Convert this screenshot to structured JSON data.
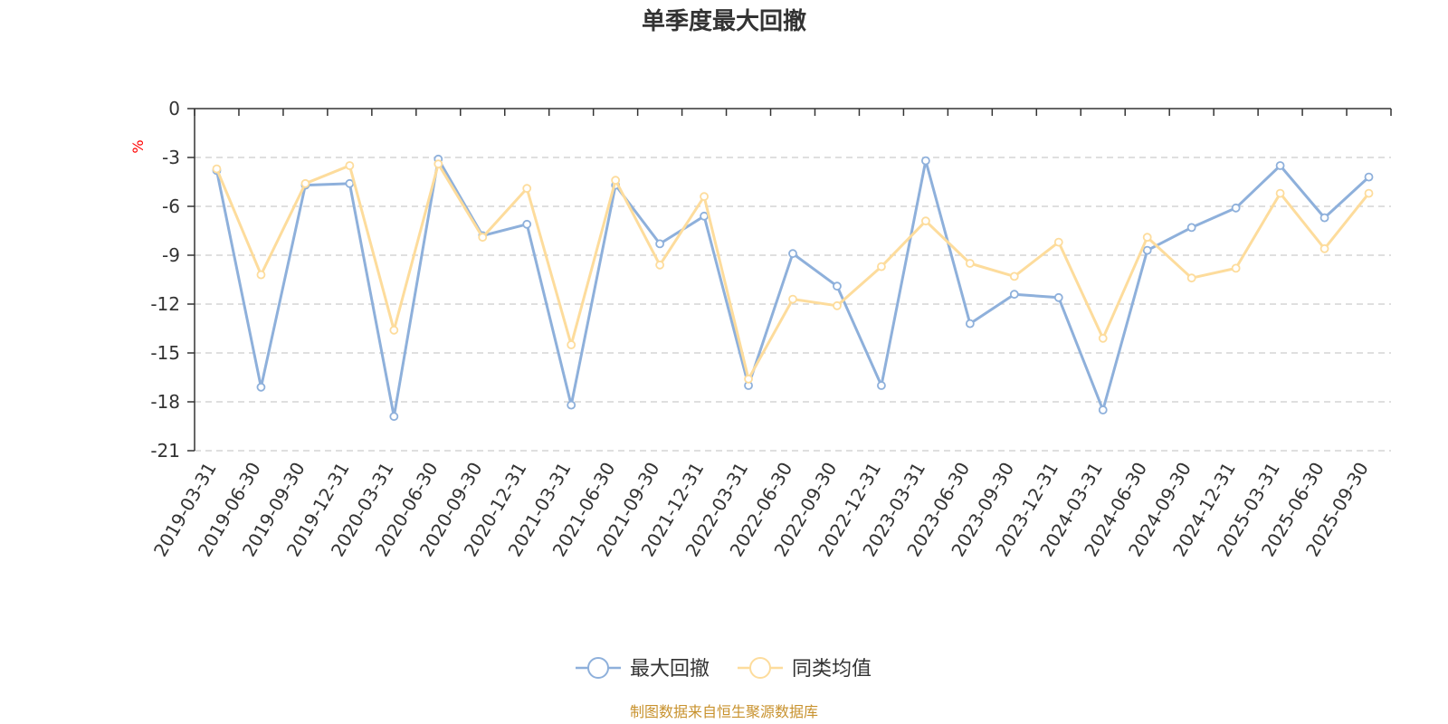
{
  "chart_data": {
    "type": "line",
    "title": "单季度最大回撤",
    "ylabel": "%",
    "ylim": [
      -21,
      0
    ],
    "yticks": [
      0,
      -3,
      -6,
      -9,
      -12,
      -15,
      -18,
      -21
    ],
    "grid": true,
    "legend_position": "bottom-center",
    "categories": [
      "2019-03-31",
      "2019-06-30",
      "2019-09-30",
      "2019-12-31",
      "2020-03-31",
      "2020-06-30",
      "2020-09-30",
      "2020-12-31",
      "2021-03-31",
      "2021-06-30",
      "2021-09-30",
      "2021-12-31",
      "2022-03-31",
      "2022-06-30",
      "2022-09-30",
      "2022-12-31",
      "2023-03-31",
      "2023-06-30",
      "2023-09-30",
      "2023-12-31",
      "2024-03-31",
      "2024-06-30",
      "2024-09-30",
      "2024-12-31",
      "2025-03-31",
      "2025-06-30",
      "2025-09-30"
    ],
    "series": [
      {
        "name": "最大回撤",
        "color": "#8eb0db",
        "values": [
          -3.8,
          -17.1,
          -4.7,
          -4.6,
          -18.9,
          -3.1,
          -7.8,
          -7.1,
          -18.2,
          -4.7,
          -8.3,
          -6.6,
          -17.0,
          -8.9,
          -10.9,
          -17.0,
          -3.2,
          -13.2,
          -11.4,
          -11.6,
          -18.5,
          -8.7,
          -7.3,
          -6.1,
          -3.5,
          -6.7,
          -4.2
        ]
      },
      {
        "name": "同类均值",
        "color": "#fddc9c",
        "values": [
          -3.7,
          -10.2,
          -4.6,
          -3.5,
          -13.6,
          -3.4,
          -7.9,
          -4.9,
          -14.5,
          -4.4,
          -9.6,
          -5.4,
          -16.6,
          -11.7,
          -12.1,
          -9.7,
          -6.9,
          -9.5,
          -10.3,
          -8.2,
          -14.1,
          -7.9,
          -10.4,
          -9.8,
          -5.2,
          -8.6,
          -5.2
        ]
      }
    ]
  },
  "source_text": "制图数据来自恒生聚源数据库",
  "colors": {
    "axis": "#333333",
    "grid": "#cccccc",
    "unit": "#ff0000",
    "source": "#c8922e"
  }
}
